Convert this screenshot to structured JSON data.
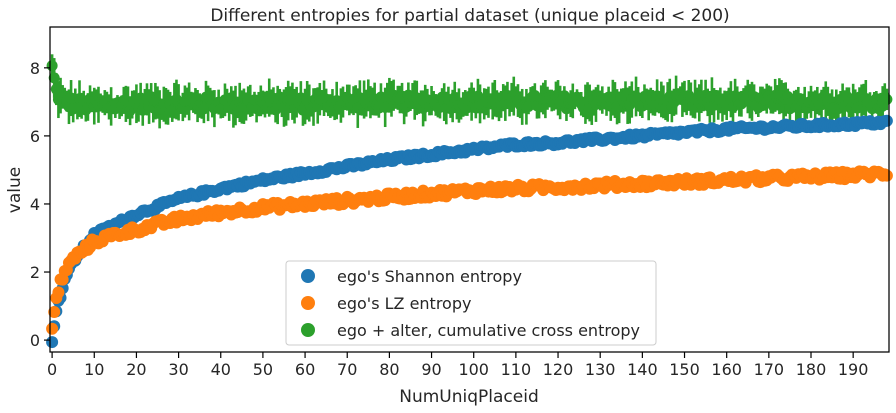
{
  "chart_data": {
    "type": "scatter",
    "title": "Different entropies for partial dataset (unique placeid < 200)",
    "xlabel": "NumUniqPlaceid",
    "ylabel": "value",
    "xlim": [
      -0.5,
      198.5
    ],
    "ylim": [
      -0.35,
      9.2
    ],
    "x_ticks": [
      0,
      10,
      20,
      30,
      40,
      50,
      60,
      70,
      80,
      90,
      100,
      110,
      120,
      130,
      140,
      150,
      160,
      170,
      180,
      190
    ],
    "y_ticks": [
      0,
      2,
      4,
      6,
      8
    ],
    "x": [
      0,
      1,
      2,
      3,
      5,
      8,
      10,
      15,
      20,
      30,
      40,
      50,
      60,
      70,
      80,
      90,
      100,
      110,
      120,
      130,
      140,
      150,
      160,
      170,
      180,
      190,
      198
    ],
    "series": [
      {
        "name": "ego's Shannon entropy",
        "color": "#1f77b4",
        "values": [
          0,
          0.9,
          1.3,
          1.8,
          2.3,
          2.8,
          3.1,
          3.4,
          3.7,
          4.15,
          4.45,
          4.7,
          4.9,
          5.1,
          5.3,
          5.45,
          5.6,
          5.75,
          5.8,
          5.9,
          6.0,
          6.1,
          6.2,
          6.25,
          6.3,
          6.35,
          6.4
        ],
        "error": 0.15
      },
      {
        "name": "ego's LZ entropy",
        "color": "#ff7f0e",
        "values": [
          0.35,
          1.2,
          1.7,
          2.0,
          2.4,
          2.7,
          2.9,
          3.1,
          3.25,
          3.55,
          3.75,
          3.9,
          4.0,
          4.1,
          4.2,
          4.3,
          4.4,
          4.45,
          4.5,
          4.55,
          4.6,
          4.65,
          4.7,
          4.75,
          4.8,
          4.85,
          4.9
        ],
        "error": 0.25
      },
      {
        "name": "ego + alter, cumulative cross entropy",
        "color": "#2ca02c",
        "values": [
          8.0,
          7.3,
          7.1,
          7.0,
          6.95,
          6.9,
          6.9,
          6.9,
          6.95,
          6.95,
          6.95,
          6.95,
          6.95,
          7.0,
          7.0,
          7.0,
          7.0,
          7.0,
          7.0,
          7.0,
          7.0,
          7.0,
          7.0,
          7.0,
          7.0,
          7.0,
          7.0
        ],
        "error": 0.45
      }
    ],
    "legend_position": "lower-center"
  }
}
